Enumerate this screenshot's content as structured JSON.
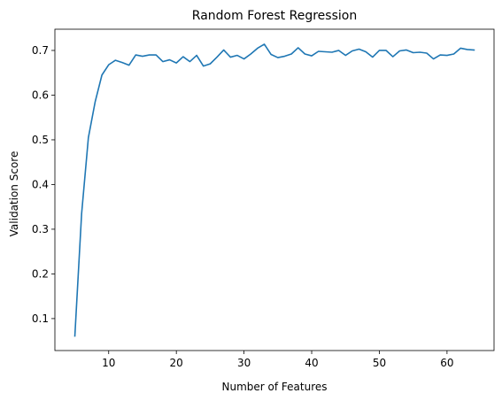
{
  "chart_data": {
    "type": "line",
    "title": "Random Forest Regression",
    "xlabel": "Number of Features",
    "ylabel": "Validation Score",
    "xlim": [
      2.05,
      66.95
    ],
    "ylim": [
      0.0285,
      0.7475
    ],
    "xticks": [
      10,
      20,
      30,
      40,
      50,
      60
    ],
    "yticks": [
      0.1,
      0.2,
      0.3,
      0.4,
      0.5,
      0.6,
      0.7
    ],
    "ytick_labels": [
      "0.1",
      "0.2",
      "0.3",
      "0.4",
      "0.5",
      "0.6",
      "0.7"
    ],
    "grid": false,
    "series": [
      {
        "color": "#1f77b4",
        "x": [
          5,
          6,
          7,
          8,
          9,
          10,
          11,
          12,
          13,
          14,
          15,
          16,
          17,
          18,
          19,
          20,
          21,
          22,
          23,
          24,
          25,
          26,
          27,
          28,
          29,
          30,
          31,
          32,
          33,
          34,
          35,
          36,
          37,
          38,
          39,
          40,
          41,
          42,
          43,
          44,
          45,
          46,
          47,
          48,
          49,
          50,
          51,
          52,
          53,
          54,
          55,
          56,
          57,
          58,
          59,
          60,
          61,
          62,
          63,
          64
        ],
        "y": [
          0.061,
          0.335,
          0.505,
          0.585,
          0.645,
          0.668,
          0.678,
          0.673,
          0.667,
          0.69,
          0.687,
          0.69,
          0.69,
          0.675,
          0.679,
          0.672,
          0.686,
          0.675,
          0.689,
          0.665,
          0.67,
          0.685,
          0.701,
          0.685,
          0.689,
          0.681,
          0.692,
          0.705,
          0.714,
          0.691,
          0.684,
          0.687,
          0.692,
          0.706,
          0.692,
          0.688,
          0.698,
          0.697,
          0.696,
          0.7,
          0.689,
          0.699,
          0.703,
          0.697,
          0.685,
          0.7,
          0.7,
          0.686,
          0.699,
          0.701,
          0.695,
          0.696,
          0.694,
          0.681,
          0.69,
          0.689,
          0.692,
          0.705,
          0.702,
          0.701
        ]
      }
    ]
  }
}
